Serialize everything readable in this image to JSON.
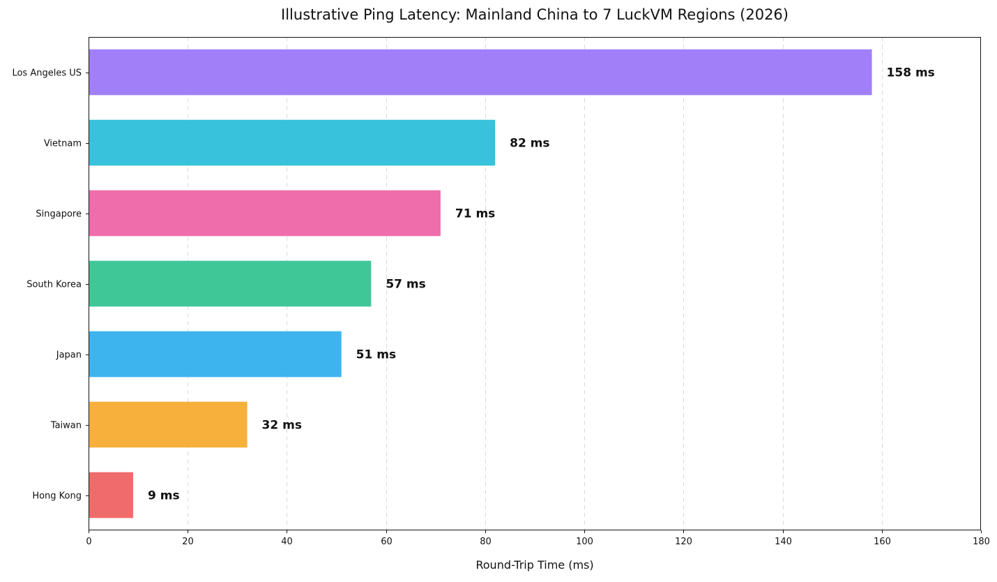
{
  "chart_data": {
    "type": "bar",
    "orientation": "horizontal",
    "title": "Illustrative Ping Latency: Mainland China to 7 LuckVM Regions (2026)",
    "xlabel": "Round-Trip Time (ms)",
    "ylabel": "",
    "xlim": [
      0,
      180
    ],
    "x_ticks": [
      0,
      20,
      40,
      60,
      80,
      100,
      120,
      140,
      160,
      180
    ],
    "grid": "vertical dashed",
    "legend": "none",
    "value_label_suffix": " ms",
    "categories": [
      "Hong Kong",
      "Taiwan",
      "Japan",
      "South Korea",
      "Singapore",
      "Vietnam",
      "Los Angeles US"
    ],
    "values": [
      9,
      32,
      51,
      57,
      71,
      82,
      158
    ],
    "colors": [
      "#ef6363",
      "#f5ac30",
      "#33b0ec",
      "#36c492",
      "#ee65a7",
      "#2dbfd9",
      "#9b78f8"
    ]
  }
}
